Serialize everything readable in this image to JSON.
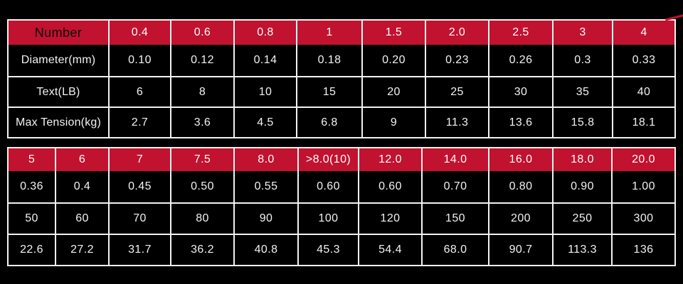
{
  "colors": {
    "background": "#000000",
    "header_bg": "#c1122f",
    "grid_border": "#f2f2f2",
    "header_number_text": "#ffffff",
    "header_label_text": "#0b0b0b",
    "cell_text": "#f2f2f2",
    "corner_accent": "#c1122f"
  },
  "chart_data": [
    {
      "type": "table",
      "name": "line-spec-table-top",
      "has_label_column": true,
      "header": [
        "Number",
        "0.4",
        "0.6",
        "0.8",
        "1",
        "1.5",
        "2.0",
        "2.5",
        "3",
        "4"
      ],
      "rows": [
        [
          "Diameter(mm)",
          "0.10",
          "0.12",
          "0.14",
          "0.18",
          "0.20",
          "0.23",
          "0.26",
          "0.3",
          "0.33"
        ],
        [
          "Text(LB)",
          "6",
          "8",
          "10",
          "15",
          "20",
          "25",
          "30",
          "35",
          "40"
        ],
        [
          "Max Tension(kg)",
          "2.7",
          "3.6",
          "4.5",
          "6.8",
          "9",
          "11.3",
          "13.6",
          "15.8",
          "18.1"
        ]
      ]
    },
    {
      "type": "table",
      "name": "line-spec-table-bottom",
      "has_label_column": false,
      "header": [
        "5",
        "6",
        "7",
        "7.5",
        "8.0",
        ">8.0(10)",
        "12.0",
        "14.0",
        "16.0",
        "18.0",
        "20.0"
      ],
      "rows": [
        [
          "0.36",
          "0.4",
          "0.45",
          "0.50",
          "0.55",
          "0.60",
          "0.60",
          "0.70",
          "0.80",
          "0.90",
          "1.00"
        ],
        [
          "50",
          "60",
          "70",
          "80",
          "90",
          "100",
          "120",
          "150",
          "200",
          "250",
          "300"
        ],
        [
          "22.6",
          "27.2",
          "31.7",
          "36.2",
          "40.8",
          "45.3",
          "54.4",
          "68.0",
          "90.7",
          "113.3",
          "136"
        ]
      ]
    }
  ]
}
